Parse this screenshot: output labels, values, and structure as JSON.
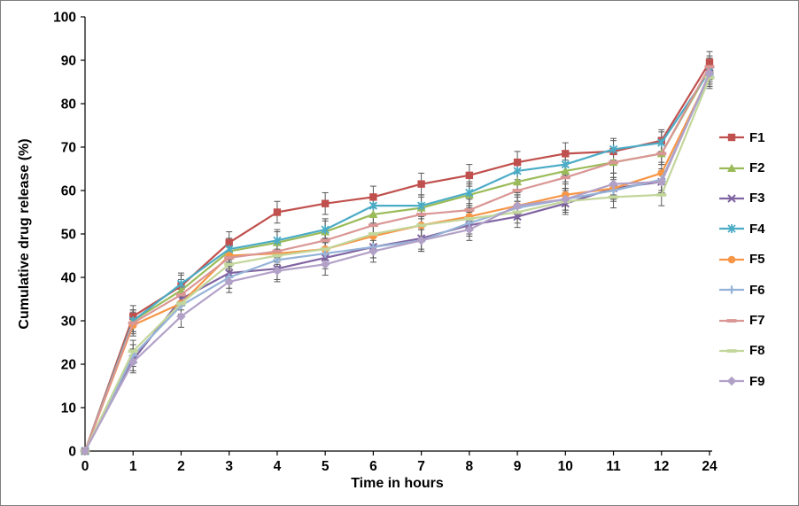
{
  "figure": {
    "background": "#ffffff",
    "border_color": "#7f7f7f"
  },
  "chart_data": {
    "type": "line",
    "title": "",
    "xlabel": "Time in hours",
    "ylabel": "Cumulative drug release (%)",
    "x_categories": [
      "0",
      "1",
      "2",
      "3",
      "4",
      "5",
      "6",
      "7",
      "8",
      "9",
      "10",
      "11",
      "12",
      "24"
    ],
    "ylim": [
      0,
      100
    ],
    "yticks": [
      0,
      10,
      20,
      30,
      40,
      50,
      60,
      70,
      80,
      90,
      100
    ],
    "grid": false,
    "legend_position": "right",
    "error_bar_half_height": 2.5,
    "error_bar_color": "#595959",
    "series": [
      {
        "name": "F1",
        "color": "#C0504D",
        "marker": "square",
        "values": [
          0,
          31,
          38,
          48,
          55,
          57,
          58.5,
          61.5,
          63.5,
          66.5,
          68.5,
          69,
          71.5,
          89.5
        ]
      },
      {
        "name": "F2",
        "color": "#9BBB59",
        "marker": "triangle",
        "values": [
          0,
          30,
          37,
          46,
          48,
          50.5,
          54.5,
          56,
          59,
          62,
          64.5,
          66.5,
          68.5,
          88
        ]
      },
      {
        "name": "F3",
        "color": "#8064A2",
        "marker": "x",
        "values": [
          0,
          21,
          35,
          41,
          42,
          44.5,
          47,
          49,
          52,
          54,
          57,
          60.5,
          62,
          87
        ]
      },
      {
        "name": "F4",
        "color": "#4BACC6",
        "marker": "asterisk",
        "values": [
          0,
          30,
          38.5,
          46.5,
          48.5,
          51,
          56.5,
          56.5,
          59.5,
          64.5,
          66,
          69.5,
          71,
          87.5
        ]
      },
      {
        "name": "F5",
        "color": "#F79646",
        "marker": "circle",
        "values": [
          0,
          29,
          34,
          45,
          45.5,
          46.5,
          49.5,
          52,
          54,
          56.5,
          59,
          60.5,
          64,
          86.5
        ]
      },
      {
        "name": "F6",
        "color": "#95B3D7",
        "marker": "plus",
        "values": [
          0,
          22,
          33.5,
          40,
          44,
          45.5,
          47,
          48.5,
          52.5,
          56,
          58,
          60,
          62.5,
          86.5
        ]
      },
      {
        "name": "F7",
        "color": "#D99694",
        "marker": "dash",
        "values": [
          0,
          29.5,
          36,
          44.5,
          46,
          48.5,
          52,
          54.5,
          55.5,
          60,
          63,
          66.5,
          68.5,
          88.5
        ]
      },
      {
        "name": "F8",
        "color": "#C3D69B",
        "marker": "dash",
        "values": [
          0,
          23,
          34,
          43,
          45,
          46.5,
          50,
          52,
          53.5,
          55,
          57.5,
          58.5,
          59,
          86
        ]
      },
      {
        "name": "F9",
        "color": "#B2A1C7",
        "marker": "diamond",
        "values": [
          0,
          20.5,
          31,
          39,
          41.5,
          43,
          46,
          48.5,
          51,
          56.5,
          58,
          61.5,
          62,
          87
        ]
      }
    ]
  }
}
